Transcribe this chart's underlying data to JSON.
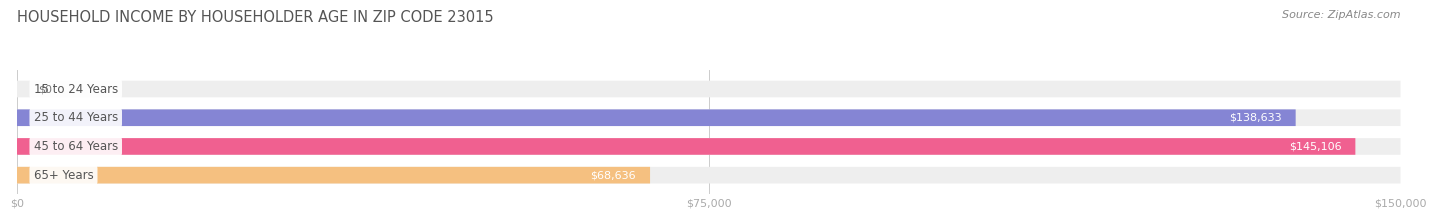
{
  "title": "HOUSEHOLD INCOME BY HOUSEHOLDER AGE IN ZIP CODE 23015",
  "source": "Source: ZipAtlas.com",
  "categories": [
    "15 to 24 Years",
    "25 to 44 Years",
    "45 to 64 Years",
    "65+ Years"
  ],
  "values": [
    0,
    138633,
    145106,
    68636
  ],
  "bar_colors": [
    "#5ecec8",
    "#8585d4",
    "#f06090",
    "#f5c080"
  ],
  "bar_bg_color": "#eeeeee",
  "value_labels": [
    "$0",
    "$138,633",
    "$145,106",
    "$68,636"
  ],
  "x_tick_labels": [
    "$0",
    "$75,000",
    "$150,000"
  ],
  "x_tick_values": [
    0,
    75000,
    150000
  ],
  "xlim": [
    0,
    150000
  ],
  "bar_height": 0.58,
  "bg_color": "#ffffff",
  "title_color": "#555555",
  "label_color": "#555555",
  "tick_color": "#aaaaaa",
  "source_color": "#888888",
  "value_label_inside_color": "#ffffff",
  "value_label_outside_color": "#777777"
}
